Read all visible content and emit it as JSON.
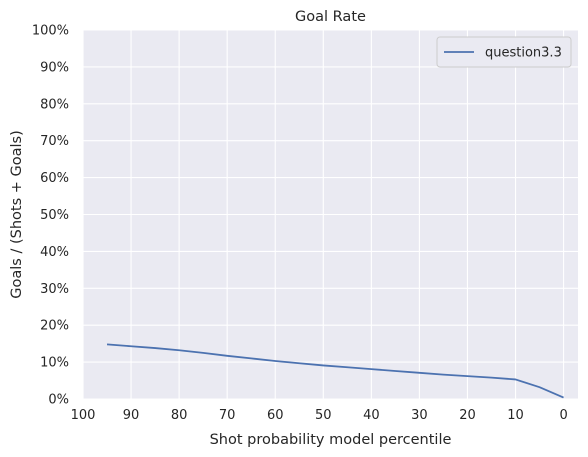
{
  "chart_data": {
    "type": "line",
    "title": "Goal Rate",
    "xlabel": "Shot probability model percentile",
    "ylabel": "Goals / (Shots + Goals)",
    "xlim": [
      100,
      -3
    ],
    "ylim": [
      0,
      1
    ],
    "x_inverted": true,
    "x_ticks": [
      100,
      90,
      80,
      70,
      60,
      50,
      40,
      30,
      20,
      10,
      0
    ],
    "x_tick_labels": [
      "100",
      "90",
      "80",
      "70",
      "60",
      "50",
      "40",
      "30",
      "20",
      "10",
      "0"
    ],
    "y_ticks": [
      0,
      0.1,
      0.2,
      0.3,
      0.4,
      0.5,
      0.6,
      0.7,
      0.8,
      0.9,
      1.0
    ],
    "y_tick_labels": [
      "0%",
      "10%",
      "20%",
      "30%",
      "40%",
      "50%",
      "60%",
      "70%",
      "80%",
      "90%",
      "100%"
    ],
    "grid": true,
    "legend_position": "top-right",
    "series": [
      {
        "name": "question3.3",
        "color": "#4c72b0",
        "x": [
          95,
          90,
          85,
          80,
          75,
          70,
          65,
          60,
          55,
          50,
          45,
          40,
          35,
          30,
          25,
          20,
          15,
          10,
          5,
          0
        ],
        "y": [
          0.148,
          0.143,
          0.138,
          0.132,
          0.125,
          0.117,
          0.11,
          0.103,
          0.097,
          0.091,
          0.086,
          0.081,
          0.076,
          0.071,
          0.066,
          0.062,
          0.058,
          0.053,
          0.032,
          0.004
        ]
      }
    ]
  },
  "colors": {
    "plot_background": "#eaeaf2",
    "grid": "#ffffff",
    "text": "#262626"
  }
}
